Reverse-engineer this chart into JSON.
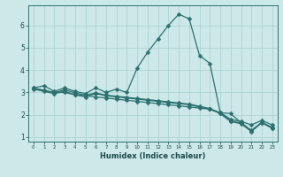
{
  "xlabel": "Humidex (Indice chaleur)",
  "background_color": "#cce8e8",
  "grid_color": "#aacfcf",
  "line_color": "#2d7070",
  "x": [
    0,
    1,
    2,
    3,
    4,
    5,
    6,
    7,
    8,
    9,
    10,
    11,
    12,
    13,
    14,
    15,
    16,
    17,
    18,
    19,
    20,
    21,
    22,
    23
  ],
  "line_main": [
    3.2,
    3.3,
    3.05,
    3.2,
    3.05,
    2.95,
    3.2,
    3.0,
    3.15,
    3.0,
    4.1,
    4.8,
    5.4,
    6.0,
    6.5,
    6.3,
    4.65,
    4.3,
    2.1,
    2.05,
    1.65,
    1.3,
    1.65,
    1.4
  ],
  "line_flat1": [
    3.2,
    3.1,
    3.0,
    3.0,
    2.9,
    2.85,
    2.8,
    2.75,
    2.7,
    2.65,
    2.6,
    2.55,
    2.5,
    2.45,
    2.4,
    2.35,
    2.3,
    2.25,
    2.1,
    1.8,
    1.7,
    1.55,
    1.75,
    1.55
  ],
  "line_flat2": [
    3.18,
    3.08,
    2.98,
    3.12,
    2.98,
    2.88,
    2.98,
    2.88,
    2.83,
    2.78,
    2.73,
    2.68,
    2.63,
    2.58,
    2.53,
    2.48,
    2.38,
    2.28,
    2.08,
    1.73,
    1.63,
    1.28,
    1.68,
    1.43
  ],
  "line_flat3": [
    3.15,
    3.05,
    2.95,
    3.05,
    2.9,
    2.8,
    2.95,
    2.85,
    2.8,
    2.75,
    2.7,
    2.65,
    2.6,
    2.55,
    2.5,
    2.45,
    2.35,
    2.25,
    2.05,
    1.7,
    1.6,
    1.25,
    1.65,
    1.4
  ],
  "ylim": [
    0.8,
    6.9
  ],
  "xlim": [
    -0.5,
    23.5
  ],
  "yticks": [
    1,
    2,
    3,
    4,
    5,
    6
  ],
  "xticks": [
    0,
    1,
    2,
    3,
    4,
    5,
    6,
    7,
    8,
    9,
    10,
    11,
    12,
    13,
    14,
    15,
    16,
    17,
    18,
    19,
    20,
    21,
    22,
    23
  ]
}
